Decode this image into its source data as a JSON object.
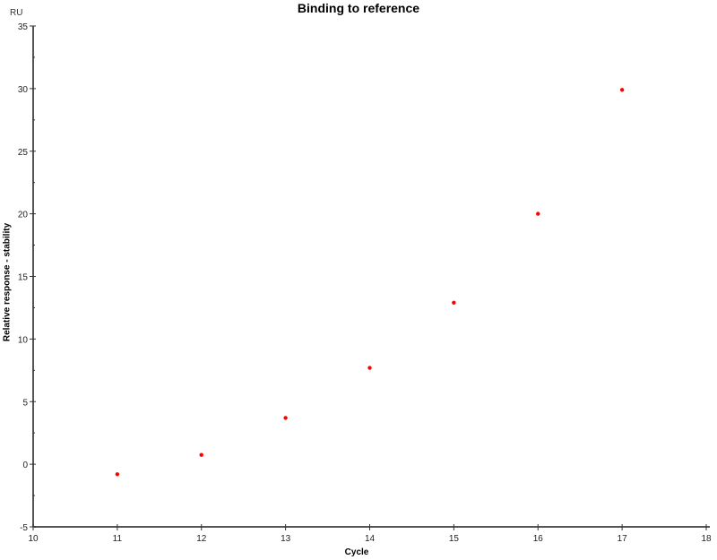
{
  "chart_data": {
    "type": "scatter",
    "title": "Binding to reference",
    "xlabel": "Cycle",
    "ylabel": "Relative response - stability",
    "yunit": "RU",
    "xlim": [
      10,
      18
    ],
    "ylim": [
      -5,
      35
    ],
    "xticks": [
      10,
      11,
      12,
      13,
      14,
      15,
      16,
      17,
      18
    ],
    "yticks": [
      -5,
      0,
      5,
      10,
      15,
      20,
      25,
      30,
      35
    ],
    "grid": false,
    "legend": "none",
    "marker_color": "#ff0000",
    "series": [
      {
        "x": [
          11,
          12,
          13,
          14,
          15,
          16,
          17
        ],
        "y": [
          -0.8,
          0.75,
          3.7,
          7.7,
          12.9,
          20.0,
          29.9
        ]
      }
    ]
  }
}
